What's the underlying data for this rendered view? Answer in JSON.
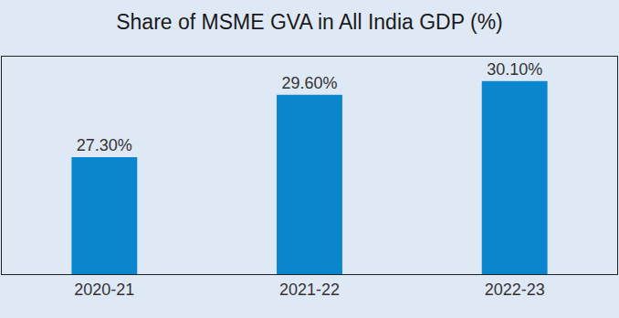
{
  "chart_data": {
    "type": "bar",
    "title": "Share of MSME GVA in All India GDP (%)",
    "categories": [
      "2020-21",
      "2021-22",
      "2022-23"
    ],
    "values": [
      27.3,
      29.6,
      30.1
    ],
    "value_labels": [
      "27.30%",
      "29.60%",
      "30.10%"
    ],
    "data_labels": true,
    "color": "#0a86cf",
    "ylim": [
      23,
      31
    ],
    "grid": false,
    "tick_labels": "x"
  }
}
